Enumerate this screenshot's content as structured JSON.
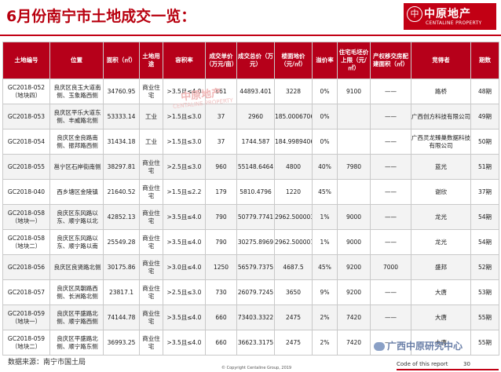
{
  "title": "6月份南宁市土地成交一览：",
  "logo": {
    "badge": "中",
    "cn": "中原地产",
    "en": "CENTALINE PROPERTY"
  },
  "watermark": {
    "cn": "中原地产",
    "en": "CENTALINE PROPERTY"
  },
  "headers": [
    "土地编号",
    "位置",
    "面积（㎡）",
    "土地用途",
    "容积率",
    "成交单价（万元/亩）",
    "成交总价（万元）",
    "楼面地价（元/㎡）",
    "溢价率",
    "住宅毛坯价上限（元/㎡）",
    "产权移交房配建面积（㎡）",
    "竞得者",
    "期数"
  ],
  "rows": [
    [
      "GC2018-052（地块四）",
      "良庆区良玉大道南侧、玉象路西侧",
      "34760.95",
      "商业住宅",
      ">3.5且≤4.0",
      "861",
      "44893.401",
      "3228",
      "0%",
      "9100",
      "——",
      "路桥",
      "48期"
    ],
    [
      "GC2018-053",
      "良庆区平乐大道东侧、丰威路北侧",
      "53333.14",
      "工业",
      ">1.5且≤3.0",
      "37",
      "2960",
      "185.0006706",
      "0%",
      "",
      "——",
      "广西创方科技有限公司",
      "49期"
    ],
    [
      "GC2018-054",
      "良庆区金良路南侧、振邦路西侧",
      "31434.18",
      "工业",
      ">1.5且≤3.0",
      "37",
      "1744.587",
      "184.9989406",
      "0%",
      "",
      "——",
      "广西灵龙臻巢数据科技有限公司",
      "50期"
    ],
    [
      "GC2018-055",
      "邕宁区石岸街南侧",
      "38297.81",
      "商业住宅",
      ">2.5且≤3.0",
      "960",
      "55148.6464",
      "4800",
      "40%",
      "7980",
      "——",
      "蓝光",
      "51期"
    ],
    [
      "GC2018-040",
      "西乡塘区金陵镇",
      "21640.52",
      "商业住宅",
      ">1.5且≤2.2",
      "179",
      "5810.4796",
      "1220",
      "45%",
      "",
      "——",
      "谢欣",
      "37期"
    ],
    [
      "GC2018-058（地块一）",
      "良庆区东风路以东、顺宁路以北",
      "42852.13",
      "商业住宅",
      ">3.5且≤4.0",
      "790",
      "50779.7741",
      "2962.500003",
      "1%",
      "9000",
      "——",
      "龙光",
      "54期"
    ],
    [
      "GC2018-058（地块二）",
      "良庆区东风路以东、顺宁路以南",
      "25549.28",
      "商业住宅",
      ">3.5且≤4.0",
      "790",
      "30275.8969",
      "2962.500001",
      "1%",
      "9000",
      "——",
      "龙光",
      "54期"
    ],
    [
      "GC2018-056",
      "良庆区良贤路北侧",
      "30175.86",
      "商业住宅",
      ">3.0且≤4.0",
      "1250",
      "56579.7375",
      "4687.5",
      "45%",
      "9200",
      "7000",
      "盛邦",
      "52期"
    ],
    [
      "GC2018-057",
      "良庆区凤朝路西侧、长洲路北侧",
      "23817.1",
      "商业住宅",
      ">2.5且≤3.0",
      "730",
      "26079.7245",
      "3650",
      "9%",
      "9200",
      "——",
      "大唐",
      "53期"
    ],
    [
      "GC2018-059（地块一）",
      "良庆区平盛路北侧、顺宁路西侧",
      "74144.78",
      "商业住宅",
      ">3.5且≤4.0",
      "660",
      "73403.3322",
      "2475",
      "2%",
      "7420",
      "——",
      "大唐",
      "55期"
    ],
    [
      "GC2018-059（地块二）",
      "良庆区平盛路北侧、顺宁路东侧",
      "36993.25",
      "商业住宅",
      ">3.5且≤4.0",
      "660",
      "36623.3175",
      "2475",
      "2%",
      "7420",
      "——",
      "大唐",
      "55期"
    ]
  ],
  "footer": {
    "source": "数据来源：南宁市国土局",
    "copyright": "© Copyright Centaline Group, 2019",
    "code": "Code of this report",
    "page": "30",
    "wechat": "广西中原研究中心"
  }
}
